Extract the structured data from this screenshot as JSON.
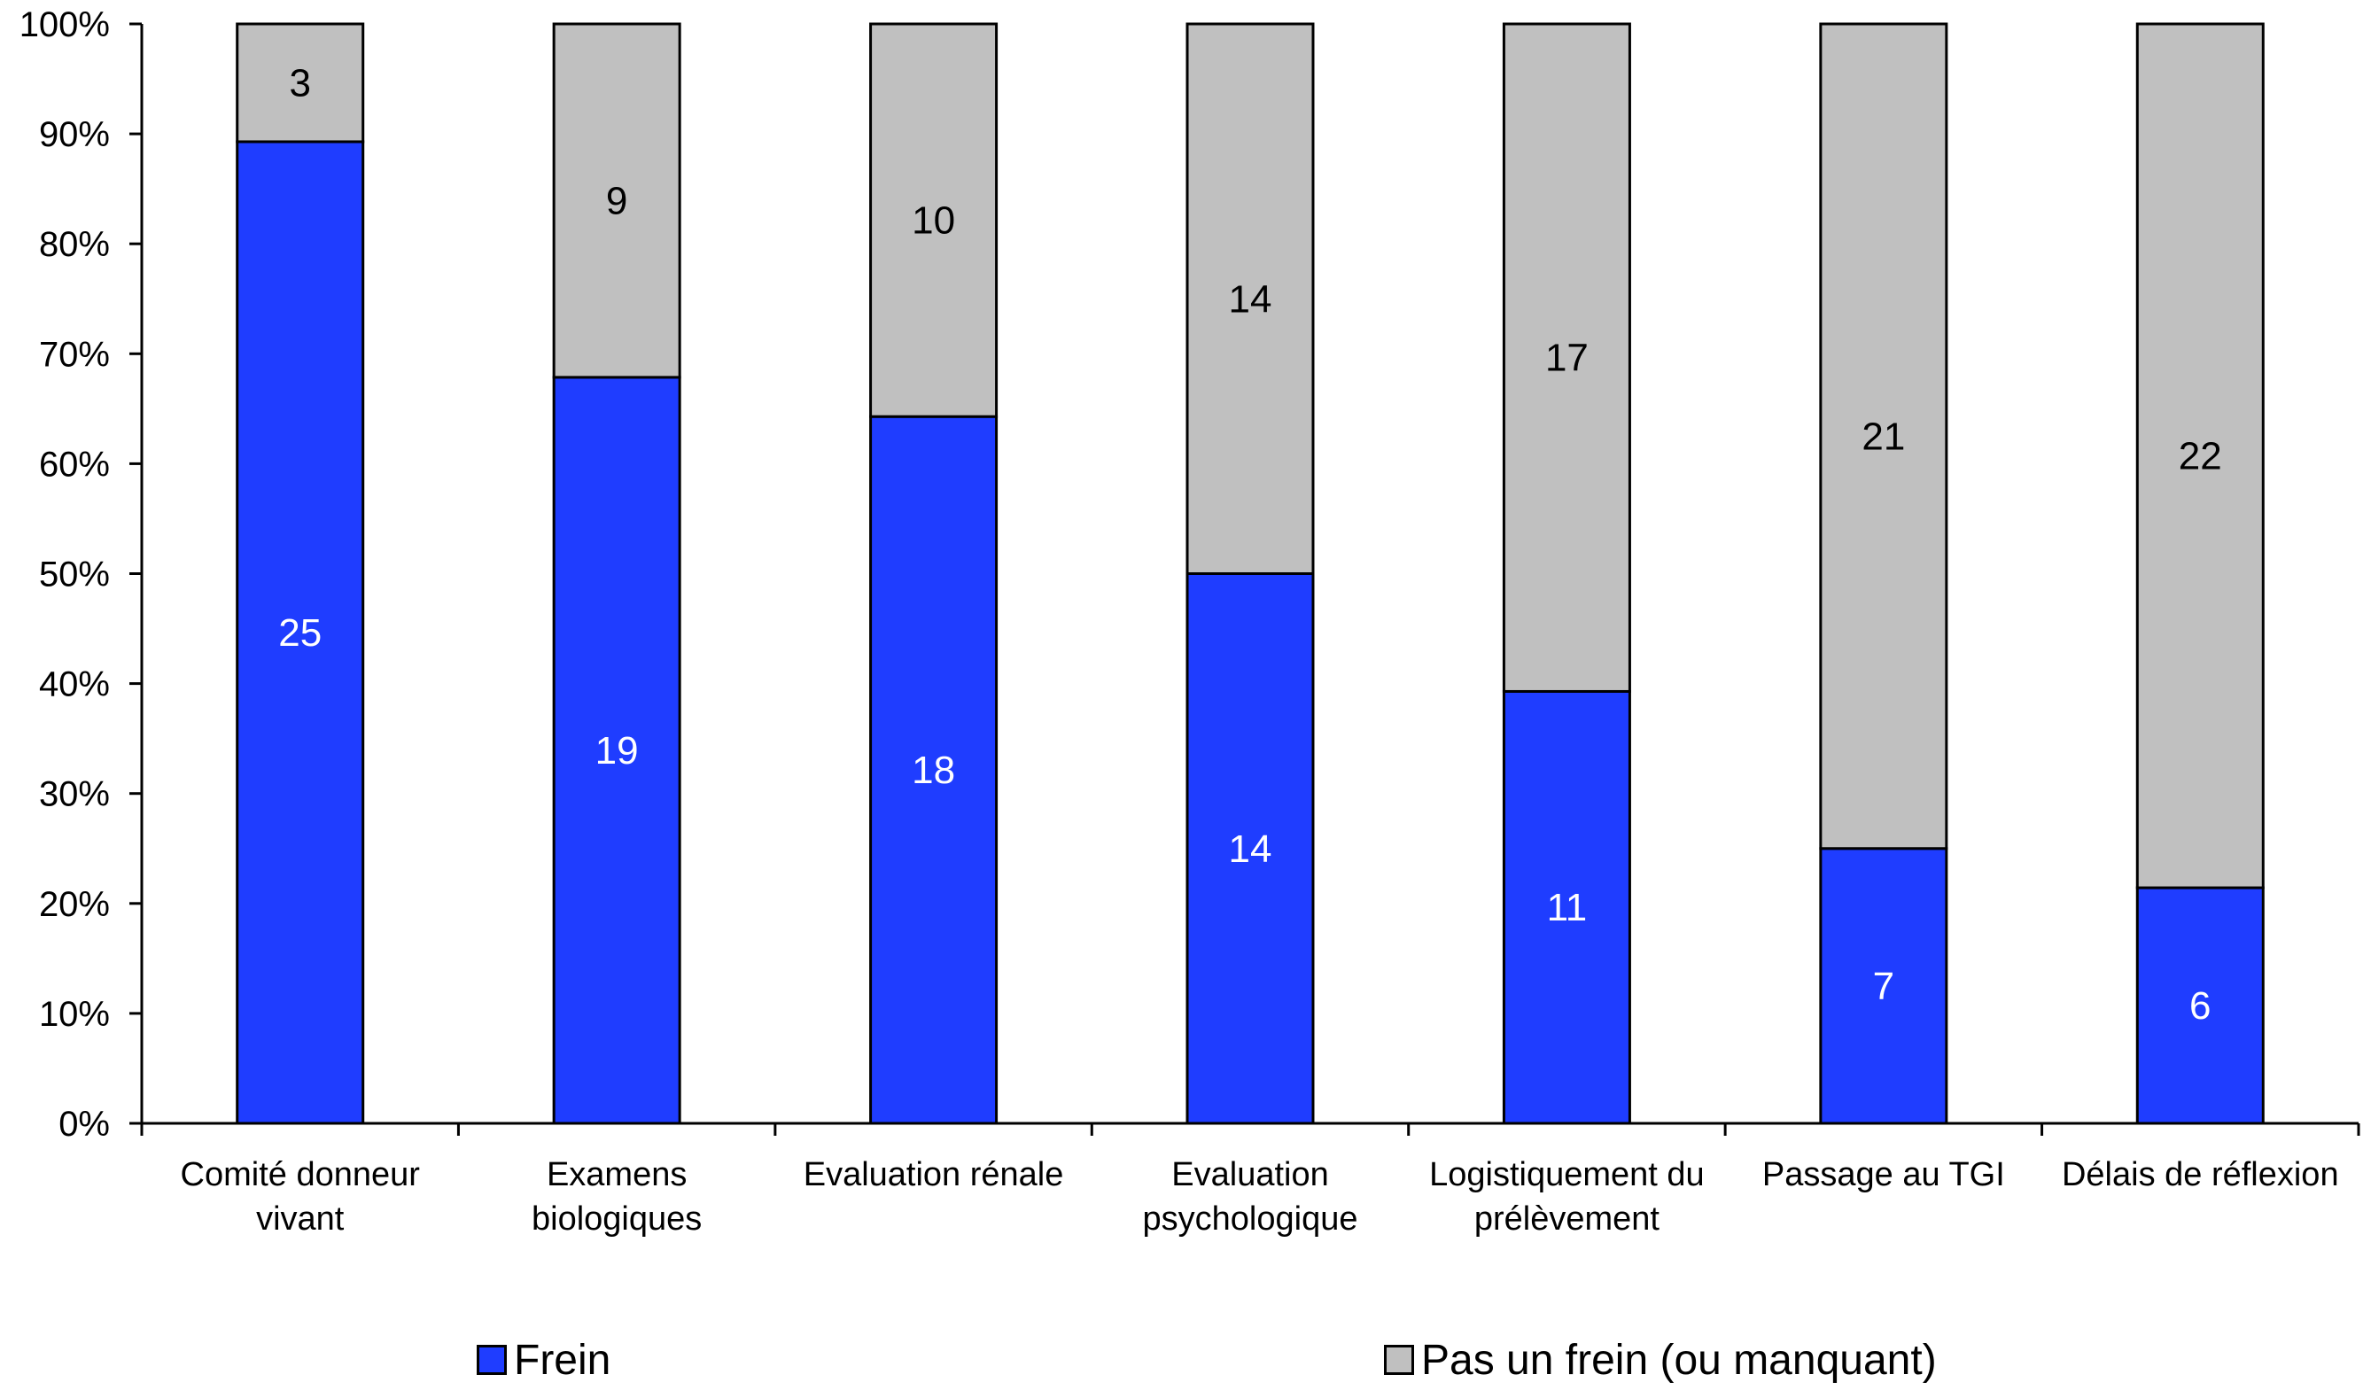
{
  "chart_data": {
    "type": "bar",
    "stacked": true,
    "normalized_percent": true,
    "categories": [
      [
        "Comité donneur",
        "vivant"
      ],
      [
        "Examens",
        "biologiques"
      ],
      [
        "Evaluation rénale"
      ],
      [
        "Evaluation",
        "psychologique"
      ],
      [
        "Logistiquement du",
        "prélèvement"
      ],
      [
        "Passage au TGI"
      ],
      [
        "Délais de réflexion"
      ]
    ],
    "series": [
      {
        "name": "Frein",
        "values": [
          25,
          19,
          18,
          14,
          11,
          7,
          6
        ],
        "color": "#1f3dff",
        "label_color": "#ffffff"
      },
      {
        "name": "Pas un frein (ou manquant)",
        "values": [
          3,
          9,
          10,
          14,
          17,
          21,
          22
        ],
        "color": "#c0c0c0",
        "label_color": "#000000"
      }
    ],
    "y_ticks": [
      "0%",
      "10%",
      "20%",
      "30%",
      "40%",
      "50%",
      "60%",
      "70%",
      "80%",
      "90%",
      "100%"
    ],
    "ylim": [
      0,
      100
    ],
    "grid": false,
    "legend_position": "bottom",
    "title": "",
    "xlabel": "",
    "ylabel": ""
  },
  "legend": {
    "items": [
      {
        "label": "Frein",
        "color": "#1f3dff"
      },
      {
        "label": "Pas un frein (ou manquant)",
        "color": "#c0c0c0"
      }
    ]
  }
}
